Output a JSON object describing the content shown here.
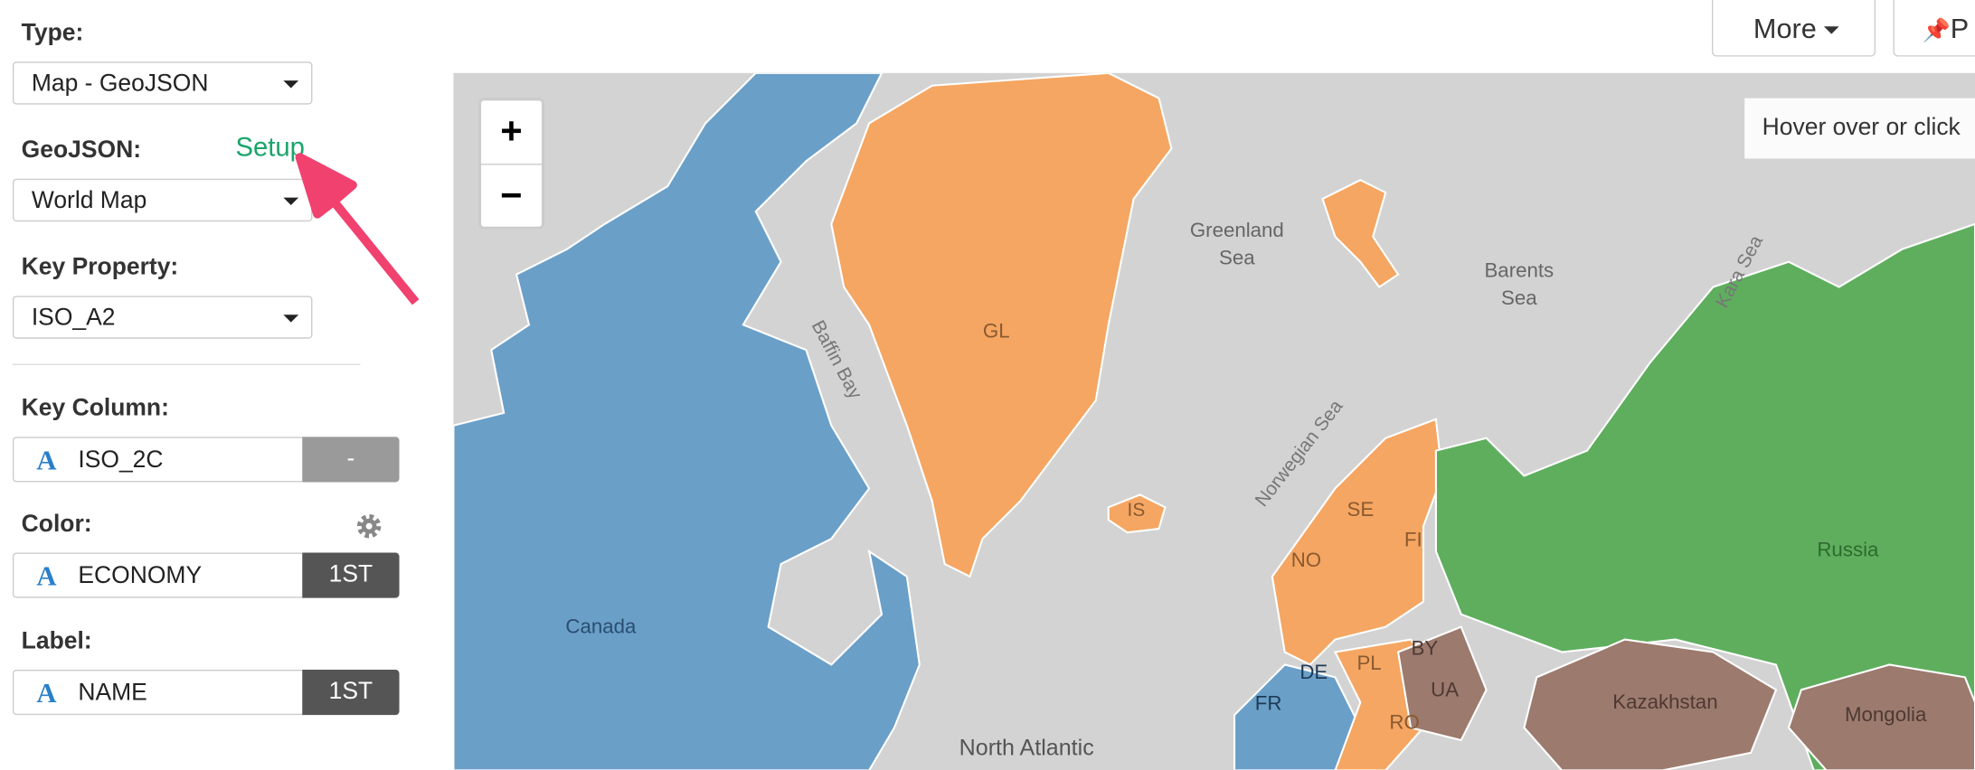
{
  "sidebar": {
    "type": {
      "label": "Type:",
      "value": "Map - GeoJSON"
    },
    "geojson": {
      "label": "GeoJSON:",
      "link": "Setup",
      "value": "World Map"
    },
    "key_property": {
      "label": "Key Property:",
      "value": "ISO_A2"
    },
    "key_column": {
      "label": "Key Column:",
      "icon": "A",
      "value": "ISO_2C",
      "button": "-"
    },
    "color": {
      "label": "Color:",
      "icon": "A",
      "value": "ECONOMY",
      "button": "1ST"
    },
    "label": {
      "label": "Label:",
      "icon": "A",
      "value": "NAME",
      "button": "1ST"
    }
  },
  "toolbar": {
    "more": "More",
    "pin": "P"
  },
  "map": {
    "zoom_in": "+",
    "zoom_out": "−",
    "hint": "Hover over or click",
    "labels": [
      {
        "lines": [
          "GL"
        ]
      },
      {
        "lines": [
          "Greenland",
          "Sea"
        ]
      },
      {
        "lines": [
          "Barents",
          "Sea"
        ]
      },
      {
        "lines": [
          "Baffin Bay"
        ]
      },
      {
        "lines": [
          "Norwegian Sea"
        ]
      },
      {
        "lines": [
          "Kara Sea"
        ]
      },
      {
        "lines": [
          "Canada"
        ]
      },
      {
        "lines": [
          "North Atlantic"
        ]
      },
      {
        "lines": [
          "IS"
        ]
      },
      {
        "lines": [
          "SE"
        ]
      },
      {
        "lines": [
          "NO"
        ]
      },
      {
        "lines": [
          "FI"
        ]
      },
      {
        "lines": [
          "Russia"
        ]
      },
      {
        "lines": [
          "BY"
        ]
      },
      {
        "lines": [
          "UA"
        ]
      },
      {
        "lines": [
          "DE"
        ]
      },
      {
        "lines": [
          "PL"
        ]
      },
      {
        "lines": [
          "FR"
        ]
      },
      {
        "lines": [
          "RO"
        ]
      },
      {
        "lines": [
          "Kazakhstan"
        ]
      },
      {
        "lines": [
          "Mongolia"
        ]
      }
    ]
  }
}
